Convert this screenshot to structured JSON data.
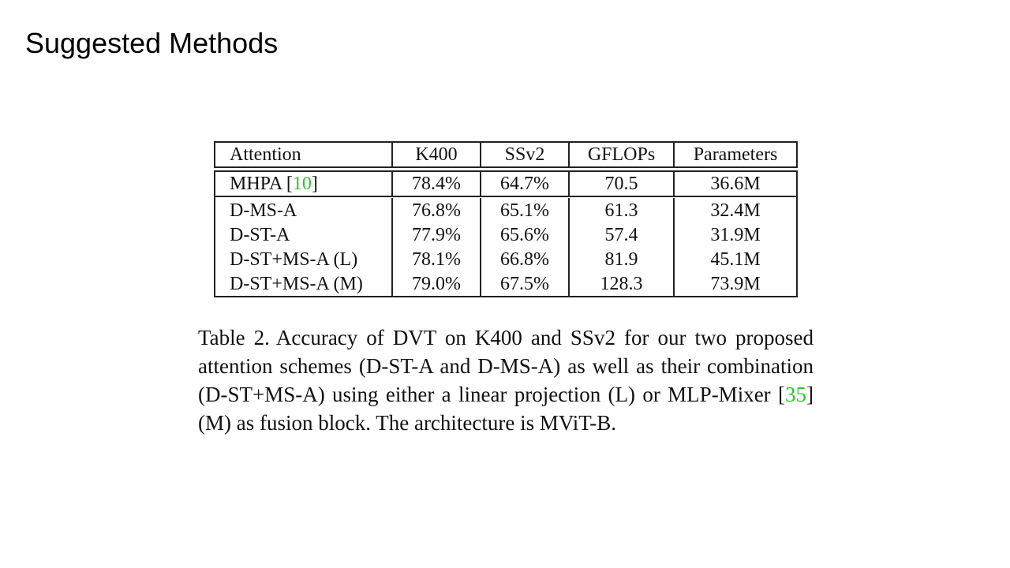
{
  "slide": {
    "title": "Suggested Methods"
  },
  "table": {
    "headers": [
      "Attention",
      "K400",
      "SSv2",
      "GFLOPs",
      "Parameters"
    ],
    "baseline": {
      "name": "MHPA ",
      "cite": "10",
      "k400": "78.4%",
      "ssv2": "64.7%",
      "gflops": "70.5",
      "params": "36.6M"
    },
    "rows": [
      {
        "name": "D-MS-A",
        "k400": "76.8%",
        "ssv2": "65.1%",
        "gflops": "61.3",
        "params": "32.4M"
      },
      {
        "name": "D-ST-A",
        "k400": "77.9%",
        "ssv2": "65.6%",
        "gflops": "57.4",
        "params": "31.9M"
      },
      {
        "name": "D-ST+MS-A (L)",
        "k400": "78.1%",
        "ssv2": "66.8%",
        "gflops": "81.9",
        "params": "45.1M"
      },
      {
        "name": "D-ST+MS-A (M)",
        "k400": "79.0%",
        "ssv2": "67.5%",
        "gflops": "128.3",
        "params": "73.9M"
      }
    ]
  },
  "caption": {
    "label": "Table 2.",
    "text_before_cite": "Accuracy of DVT on K400 and SSv2 for our two proposed attention schemes (D-ST-A and D-MS-A) as well as their combination (D-ST+MS-A) using either a linear projection (L) or MLP-Mixer ",
    "cite": "35",
    "text_after_cite": " (M) as fusion block. The architecture is MViT-B."
  }
}
